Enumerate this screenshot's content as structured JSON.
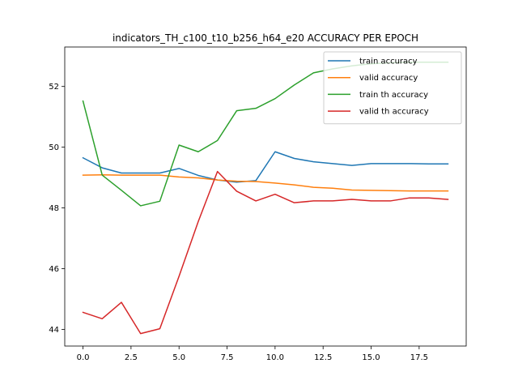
{
  "chart_data": {
    "type": "line",
    "title": "indicators_TH_c100_t10_b256_h64_e20 ACCURACY PER EPOCH",
    "xlabel": "",
    "ylabel": "",
    "xlim": [
      -0.95,
      19.95
    ],
    "ylim": [
      43.45,
      53.3
    ],
    "x_ticks": [
      0,
      2.5,
      5,
      7.5,
      10,
      12.5,
      15,
      17.5
    ],
    "x_tick_labels": [
      "0.0",
      "2.5",
      "5.0",
      "7.5",
      "10.0",
      "12.5",
      "15.0",
      "17.5"
    ],
    "y_ticks": [
      44,
      46,
      48,
      50,
      52
    ],
    "y_tick_labels": [
      "44",
      "46",
      "48",
      "50",
      "52"
    ],
    "grid": false,
    "legend_position": "top-right",
    "x": [
      0,
      1,
      2,
      3,
      4,
      5,
      6,
      7,
      8,
      9,
      10,
      11,
      12,
      13,
      14,
      15,
      16,
      17,
      18,
      19
    ],
    "series": [
      {
        "name": "train accuracy",
        "color": "#1f77b4",
        "values": [
          49.65,
          49.32,
          49.15,
          49.15,
          49.15,
          49.3,
          49.07,
          48.92,
          48.85,
          48.9,
          49.85,
          49.63,
          49.52,
          49.46,
          49.4,
          49.46,
          49.46,
          49.46,
          49.45,
          49.45
        ]
      },
      {
        "name": "valid accuracy",
        "color": "#ff7f0e",
        "values": [
          49.08,
          49.09,
          49.08,
          49.08,
          49.08,
          49.02,
          48.99,
          48.92,
          48.88,
          48.87,
          48.82,
          48.76,
          48.68,
          48.65,
          48.59,
          48.58,
          48.57,
          48.56,
          48.56,
          48.56
        ]
      },
      {
        "name": "train th accuracy",
        "color": "#2ca02c",
        "values": [
          51.52,
          49.08,
          48.58,
          48.07,
          48.22,
          50.07,
          49.85,
          50.22,
          51.2,
          51.28,
          51.6,
          52.05,
          52.45,
          52.58,
          52.68,
          52.75,
          52.78,
          52.8,
          52.8,
          52.8
        ]
      },
      {
        "name": "valid th accuracy",
        "color": "#d62728",
        "values": [
          44.56,
          44.35,
          44.89,
          43.86,
          44.02,
          45.75,
          47.55,
          49.2,
          48.55,
          48.23,
          48.45,
          48.17,
          48.23,
          48.23,
          48.28,
          48.23,
          48.23,
          48.33,
          48.33,
          48.28
        ]
      }
    ]
  }
}
